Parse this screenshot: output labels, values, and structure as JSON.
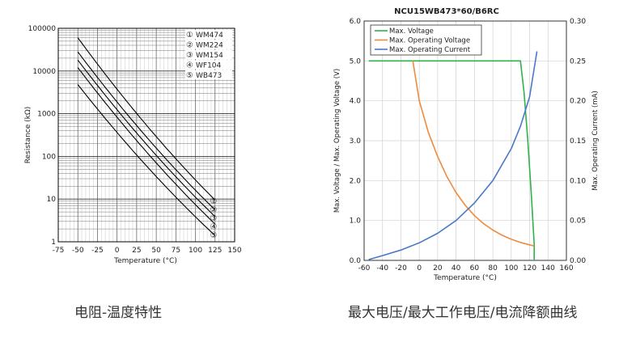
{
  "captions": {
    "left": "电阻-温度特性",
    "right": "最大电压/最大工作电压/电流降额曲线"
  },
  "chart_data": [
    {
      "type": "line",
      "title": "",
      "xlabel": "Temperature (°C)",
      "ylabel": "Resistance (kΩ)",
      "xlim": [
        -75,
        150
      ],
      "ylim": [
        1,
        100000
      ],
      "yscale": "log",
      "x_ticks": [
        "-75",
        "-50",
        "-25",
        "0",
        "25",
        "50",
        "75",
        "100",
        "125",
        "150"
      ],
      "y_ticks": [
        "100000",
        "10000",
        "1000",
        "100",
        "10",
        "1"
      ],
      "legend": [
        {
          "marker": "①",
          "label": "WM474"
        },
        {
          "marker": "②",
          "label": "WM224"
        },
        {
          "marker": "③",
          "label": "WM154"
        },
        {
          "marker": "④",
          "label": "WF104"
        },
        {
          "marker": "⑤",
          "label": "WB473"
        }
      ],
      "legend_position": "top-right",
      "series": [
        {
          "name": "WM474",
          "marker": "①",
          "x": [
            -50,
            125
          ],
          "y": [
            60000,
            9.5
          ]
        },
        {
          "name": "WM224",
          "marker": "②",
          "x": [
            -50,
            125
          ],
          "y": [
            28000,
            5.6
          ]
        },
        {
          "name": "WM154",
          "marker": "③",
          "x": [
            -50,
            125
          ],
          "y": [
            18000,
            3.9
          ]
        },
        {
          "name": "WF104",
          "marker": "④",
          "x": [
            -50,
            125
          ],
          "y": [
            12000,
            2.6
          ]
        },
        {
          "name": "WB473",
          "marker": "⑤",
          "x": [
            -50,
            125
          ],
          "y": [
            4800,
            1.4
          ]
        }
      ],
      "grid": true
    },
    {
      "type": "line",
      "title": "NCU15WB473*60/B6RC",
      "xlabel": "Temperature (°C)",
      "ylabel": "Max. Voltage / Max. Operating Voltage (V)",
      "y2label": "Max. Operating Current (mA)",
      "xlim": [
        -60,
        160
      ],
      "ylim": [
        0,
        6
      ],
      "y2lim": [
        0,
        0.3
      ],
      "x_ticks": [
        "-60",
        "-40",
        "-20",
        "0",
        "20",
        "40",
        "60",
        "80",
        "100",
        "120",
        "140",
        "160"
      ],
      "y_ticks": [
        "0.0",
        "1.0",
        "2.0",
        "3.0",
        "4.0",
        "5.0",
        "6.0"
      ],
      "y2_ticks": [
        "0.00",
        "0.05",
        "0.10",
        "0.15",
        "0.20",
        "0.25",
        "0.30"
      ],
      "legend_position": "top-left",
      "grid": true,
      "series": [
        {
          "name": "Max. Voltage",
          "color": "#2db34a",
          "axis": "left",
          "x": [
            -55,
            110,
            114,
            118,
            122,
            125,
            125
          ],
          "y": [
            5.0,
            5.0,
            4.2,
            3.0,
            1.6,
            0.4,
            0.0
          ]
        },
        {
          "name": "Max. Operating Voltage",
          "color": "#f08a3c",
          "axis": "left",
          "x": [
            -7,
            0,
            10,
            20,
            30,
            40,
            50,
            60,
            70,
            80,
            90,
            100,
            110,
            120,
            125
          ],
          "y": [
            5.0,
            4.0,
            3.2,
            2.6,
            2.1,
            1.7,
            1.38,
            1.12,
            0.92,
            0.76,
            0.63,
            0.53,
            0.45,
            0.39,
            0.36
          ]
        },
        {
          "name": "Max. Operating Current",
          "color": "#4a78c8",
          "axis": "right",
          "x": [
            -55,
            -40,
            -20,
            0,
            20,
            40,
            60,
            80,
            100,
            110,
            120,
            128
          ],
          "y": [
            0.001,
            0.006,
            0.013,
            0.022,
            0.034,
            0.05,
            0.072,
            0.1,
            0.14,
            0.168,
            0.205,
            0.262
          ]
        }
      ]
    }
  ]
}
